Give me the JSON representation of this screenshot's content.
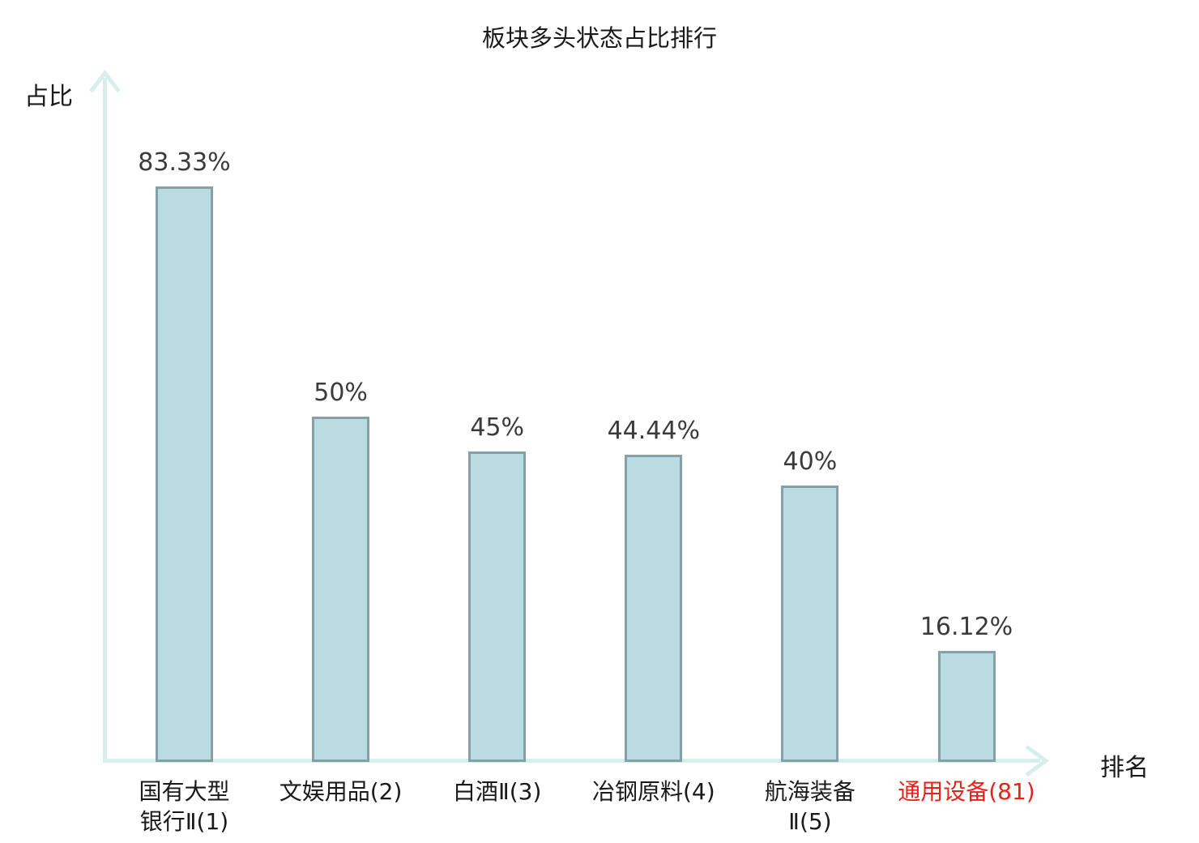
{
  "chart_data": {
    "type": "bar",
    "title": "板块多头状态占比排行",
    "xlabel": "排名",
    "ylabel": "占比",
    "categories": [
      "国有大型银行Ⅱ(1)",
      "文娱用品(2)",
      "白酒Ⅱ(3)",
      "冶钢原料(4)",
      "航海装备Ⅱ(5)",
      "通用设备(81)"
    ],
    "values": [
      83.33,
      50,
      45,
      44.44,
      40,
      16.12
    ],
    "value_labels": [
      "83.33%",
      "50%",
      "45%",
      "44.44%",
      "40%",
      "16.12%"
    ],
    "category_lines": [
      [
        "国有大型",
        "银行Ⅱ(1)"
      ],
      [
        "文娱用品(2)"
      ],
      [
        "白酒Ⅱ(3)"
      ],
      [
        "冶钢原料(4)"
      ],
      [
        "航海装备",
        "Ⅱ(5)"
      ],
      [
        "通用设备(81)"
      ]
    ],
    "highlighted_index": 5,
    "ylim": [
      0,
      100
    ],
    "grid": false,
    "legend": null
  },
  "colors": {
    "bar_fill": "#b9dde3",
    "bar_border": "#87a0a5",
    "axis": "#d8eeec",
    "value_text": "#3b3b3b",
    "category_text": "#1a1a1a",
    "highlight_text": "#e6231a",
    "title_text": "#1a1a1a"
  }
}
